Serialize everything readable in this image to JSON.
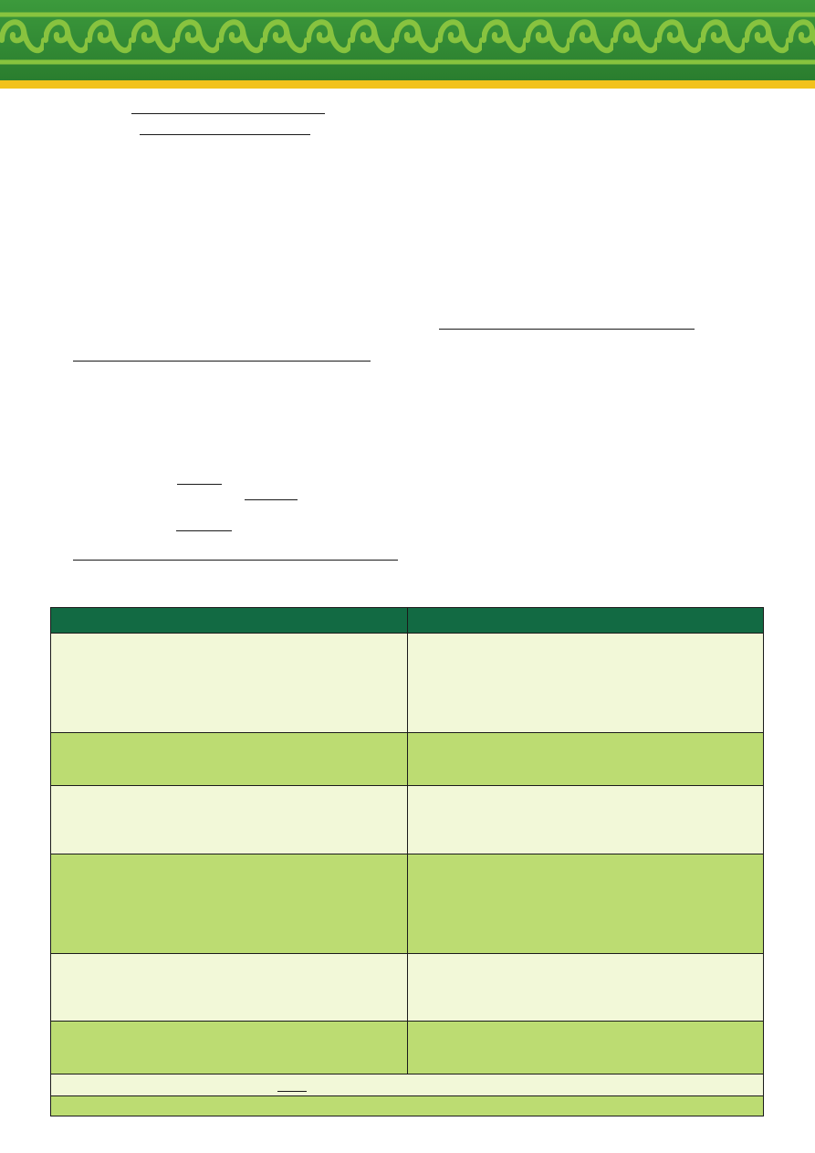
{
  "colors": {
    "banner_green": "#2f8a34",
    "banner_pattern": "#8cc63f",
    "banner_stripe": "#f2c21b",
    "table_header": "#126a43",
    "row_light": "#f2f8d8",
    "row_mid": "#bcdc72",
    "rule": "#1a1a1a"
  },
  "icons": {
    "banner": "greek-key-scroll-pattern-icon"
  },
  "table": {
    "columns": 2,
    "body_rows": 6
  }
}
